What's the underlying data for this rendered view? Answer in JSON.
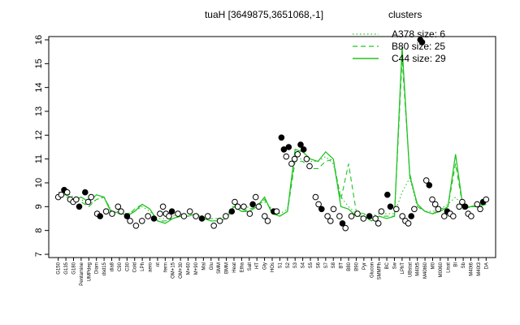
{
  "chart_data": {
    "type": "line",
    "title": "tuaH [3649875,3651068,-1]",
    "xlabel": "",
    "ylabel": "",
    "ylim": [
      7,
      16
    ],
    "y_ticks": [
      7,
      8,
      9,
      10,
      11,
      12,
      13,
      14,
      15,
      16
    ],
    "grid": false,
    "legend": {
      "title": "clusters",
      "position": "top-right",
      "entries": [
        {
          "label": "A378 size: 6",
          "style": "dotted",
          "color": "#22c322"
        },
        {
          "label": "B80 size: 25",
          "style": "dashed",
          "color": "#22c322"
        },
        {
          "label": "C44 size: 29",
          "style": "solid",
          "color": "#22c322"
        }
      ]
    },
    "x_tick_labels": [
      "G150",
      "G135",
      "G180",
      "Pentamine",
      "UMPdeg",
      "Diam",
      "dsd15",
      "dia8",
      "C90",
      "C30",
      "Cold",
      "LPh",
      "aero",
      "nt",
      "ferm",
      "OM+15",
      "OM+30",
      "M+60",
      "M+90",
      "Mal",
      "Glu",
      "SMM",
      "BMM",
      "Heat",
      "Etha",
      "Salt",
      "HT",
      "Gly",
      "HOs",
      "S1",
      "S2",
      "S3",
      "S4",
      "S5",
      "S6",
      "S7",
      "S8",
      "BT",
      "B80",
      "B90",
      "Pyr",
      "Glucon",
      "SMMPh",
      "BC",
      "Sw",
      "LPhT",
      "UBstat",
      "M40t5",
      "M40t60",
      "M0",
      "M0060",
      "Lisat",
      "BI",
      "Sb",
      "M40t6",
      "M40t3",
      "DA"
    ],
    "series": [
      {
        "style": "solid",
        "values": [
          9.5,
          9.5,
          9.3,
          9.4,
          9.2,
          9.5,
          9.4,
          8.7,
          8.8,
          8.6,
          8.8,
          9.1,
          8.9,
          8.4,
          8.3,
          8.5,
          8.6,
          8.6,
          8.7,
          8.5,
          8.4,
          8.4,
          8.5,
          9.0,
          8.8,
          8.8,
          9.0,
          9.4,
          8.7,
          8.6,
          8.8,
          11.4,
          11.3,
          11.0,
          10.9,
          11.3,
          11.0,
          9.0,
          8.9,
          8.6,
          8.6,
          8.4,
          8.6,
          8.5,
          8.6,
          15.7,
          10.3,
          9.1,
          8.8,
          8.7,
          8.8,
          9.0,
          11.2,
          8.9,
          9.0,
          9.0,
          9.1
        ]
      },
      {
        "style": "dashed",
        "values": [
          9.4,
          9.4,
          9.3,
          9.2,
          9.0,
          9.3,
          9.4,
          8.8,
          8.7,
          8.6,
          8.9,
          9.1,
          8.9,
          8.4,
          8.4,
          8.5,
          8.6,
          8.6,
          8.7,
          8.5,
          8.5,
          8.5,
          8.6,
          9.0,
          8.8,
          8.9,
          9.0,
          9.3,
          8.8,
          8.6,
          8.8,
          10.9,
          10.9,
          10.6,
          10.6,
          10.9,
          11.0,
          9.3,
          10.8,
          8.8,
          8.7,
          8.5,
          8.6,
          8.6,
          8.6,
          15.2,
          10.4,
          9.0,
          8.8,
          8.7,
          8.9,
          9.0,
          10.8,
          8.9,
          9.0,
          9.1,
          9.1
        ]
      },
      {
        "style": "dotted",
        "values": [
          9.6,
          9.6,
          9.4,
          9.3,
          9.1,
          9.3,
          9.4,
          8.8,
          8.8,
          8.7,
          8.8,
          9.0,
          8.8,
          8.5,
          8.5,
          8.6,
          8.7,
          8.6,
          8.7,
          8.6,
          8.5,
          8.5,
          8.6,
          9.1,
          8.9,
          9.0,
          9.1,
          9.2,
          8.9,
          8.7,
          8.9,
          11.0,
          11.0,
          10.9,
          10.9,
          11.1,
          10.8,
          9.4,
          9.0,
          8.7,
          8.7,
          8.6,
          8.7,
          8.7,
          8.7,
          9.6,
          10.2,
          9.0,
          8.8,
          8.8,
          8.9,
          9.1,
          9.4,
          9.0,
          9.0,
          9.1,
          9.2
        ]
      }
    ],
    "points": [
      {
        "x": 0.5,
        "y": 9.4
      },
      {
        "x": 1.0,
        "y": 9.5
      },
      {
        "x": 1.5,
        "y": 9.7
      },
      {
        "x": 2.0,
        "y": 9.6
      },
      {
        "x": 2.5,
        "y": 9.3
      },
      {
        "x": 3.0,
        "y": 9.2
      },
      {
        "x": 3.5,
        "y": 9.3
      },
      {
        "x": 4.0,
        "y": 9.0
      },
      {
        "x": 5.0,
        "y": 9.6
      },
      {
        "x": 5.5,
        "y": 9.2
      },
      {
        "x": 6.0,
        "y": 9.4
      },
      {
        "x": 7.0,
        "y": 8.7
      },
      {
        "x": 7.5,
        "y": 8.6
      },
      {
        "x": 8.5,
        "y": 8.8
      },
      {
        "x": 9.5,
        "y": 8.7
      },
      {
        "x": 10.5,
        "y": 9.0
      },
      {
        "x": 11.0,
        "y": 8.8
      },
      {
        "x": 12.0,
        "y": 8.6
      },
      {
        "x": 12.5,
        "y": 8.4
      },
      {
        "x": 13.5,
        "y": 8.2
      },
      {
        "x": 14.5,
        "y": 8.4
      },
      {
        "x": 15.5,
        "y": 8.6
      },
      {
        "x": 16.5,
        "y": 8.5
      },
      {
        "x": 17.5,
        "y": 8.7
      },
      {
        "x": 18.0,
        "y": 9.0
      },
      {
        "x": 18.5,
        "y": 8.7
      },
      {
        "x": 19.0,
        "y": 8.6
      },
      {
        "x": 19.5,
        "y": 8.8
      },
      {
        "x": 20.5,
        "y": 8.7
      },
      {
        "x": 21.5,
        "y": 8.6
      },
      {
        "x": 22.5,
        "y": 8.8
      },
      {
        "x": 23.5,
        "y": 8.6
      },
      {
        "x": 24.5,
        "y": 8.5
      },
      {
        "x": 25.5,
        "y": 8.6
      },
      {
        "x": 26.5,
        "y": 8.2
      },
      {
        "x": 27.5,
        "y": 8.4
      },
      {
        "x": 28.5,
        "y": 8.6
      },
      {
        "x": 29.5,
        "y": 8.8
      },
      {
        "x": 30.0,
        "y": 9.2
      },
      {
        "x": 30.5,
        "y": 9.0
      },
      {
        "x": 31.5,
        "y": 9.0
      },
      {
        "x": 32.5,
        "y": 8.7
      },
      {
        "x": 33.0,
        "y": 9.1
      },
      {
        "x": 33.5,
        "y": 9.4
      },
      {
        "x": 34.0,
        "y": 9.0
      },
      {
        "x": 35.0,
        "y": 8.6
      },
      {
        "x": 35.5,
        "y": 8.4
      },
      {
        "x": 36.5,
        "y": 8.8
      },
      {
        "x": 37.0,
        "y": 8.8
      },
      {
        "x": 37.8,
        "y": 11.9
      },
      {
        "x": 38.2,
        "y": 11.4
      },
      {
        "x": 38.6,
        "y": 11.1
      },
      {
        "x": 39.0,
        "y": 11.5
      },
      {
        "x": 39.5,
        "y": 10.8
      },
      {
        "x": 40.0,
        "y": 11.0
      },
      {
        "x": 40.5,
        "y": 11.2
      },
      {
        "x": 41.0,
        "y": 11.6
      },
      {
        "x": 41.5,
        "y": 11.4
      },
      {
        "x": 42.0,
        "y": 11.0
      },
      {
        "x": 42.5,
        "y": 10.7
      },
      {
        "x": 43.5,
        "y": 9.4
      },
      {
        "x": 44.0,
        "y": 9.1
      },
      {
        "x": 44.5,
        "y": 8.9
      },
      {
        "x": 45.5,
        "y": 8.6
      },
      {
        "x": 46.0,
        "y": 8.4
      },
      {
        "x": 46.5,
        "y": 8.9
      },
      {
        "x": 47.5,
        "y": 8.6
      },
      {
        "x": 48.0,
        "y": 8.3
      },
      {
        "x": 48.5,
        "y": 8.1
      },
      {
        "x": 49.5,
        "y": 8.6
      },
      {
        "x": 50.5,
        "y": 8.7
      },
      {
        "x": 51.5,
        "y": 8.5
      },
      {
        "x": 52.5,
        "y": 8.6
      },
      {
        "x": 53.5,
        "y": 8.5
      },
      {
        "x": 54.0,
        "y": 8.3
      },
      {
        "x": 54.5,
        "y": 8.8
      },
      {
        "x": 55.5,
        "y": 9.5
      },
      {
        "x": 56.0,
        "y": 9.0
      },
      {
        "x": 57.0,
        "y": 8.9
      },
      {
        "x": 58.0,
        "y": 8.6
      },
      {
        "x": 58.5,
        "y": 8.4
      },
      {
        "x": 59.0,
        "y": 8.3
      },
      {
        "x": 59.5,
        "y": 8.6
      },
      {
        "x": 60.0,
        "y": 8.9
      },
      {
        "x": 61.0,
        "y": 16.0
      },
      {
        "x": 61.3,
        "y": 15.9
      },
      {
        "x": 62.0,
        "y": 10.1
      },
      {
        "x": 62.5,
        "y": 9.9
      },
      {
        "x": 63.0,
        "y": 9.3
      },
      {
        "x": 63.5,
        "y": 9.1
      },
      {
        "x": 64.0,
        "y": 8.9
      },
      {
        "x": 65.0,
        "y": 8.6
      },
      {
        "x": 65.5,
        "y": 8.8
      },
      {
        "x": 66.0,
        "y": 8.7
      },
      {
        "x": 66.5,
        "y": 8.6
      },
      {
        "x": 67.5,
        "y": 9.0
      },
      {
        "x": 68.0,
        "y": 9.2
      },
      {
        "x": 68.5,
        "y": 9.0
      },
      {
        "x": 69.0,
        "y": 8.7
      },
      {
        "x": 69.5,
        "y": 8.6
      },
      {
        "x": 70.5,
        "y": 9.1
      },
      {
        "x": 71.0,
        "y": 8.9
      },
      {
        "x": 71.5,
        "y": 9.2
      },
      {
        "x": 72.0,
        "y": 9.3
      }
    ]
  }
}
